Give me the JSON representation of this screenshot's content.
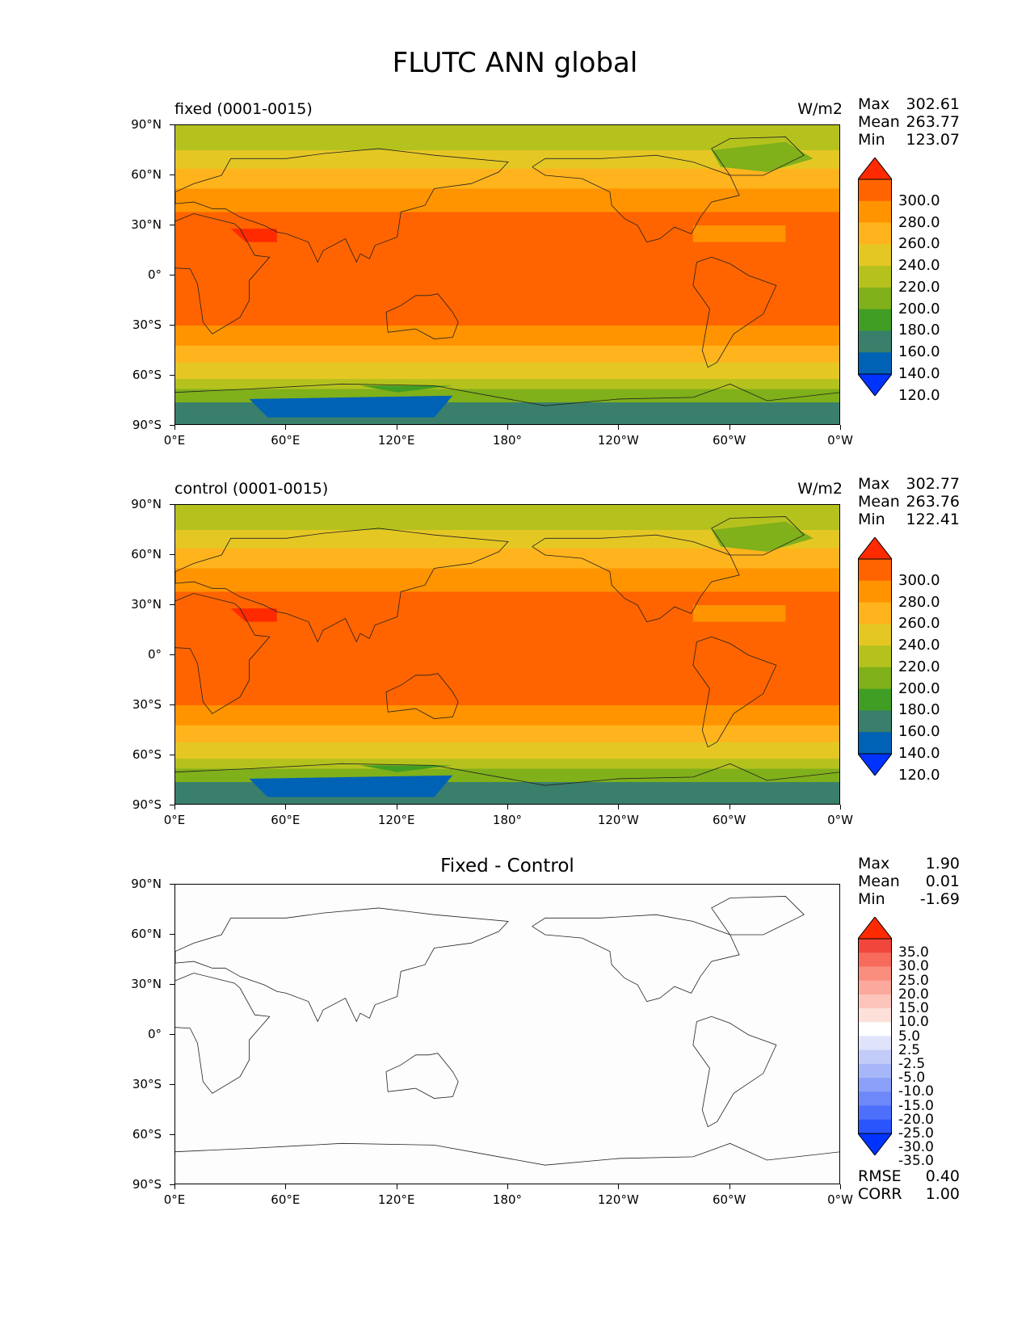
{
  "title": "FLUTC ANN global",
  "axes": {
    "y_labels": [
      "90°N",
      "60°N",
      "30°N",
      "0°",
      "30°S",
      "60°S",
      "90°S"
    ],
    "x_labels": [
      "0°E",
      "60°E",
      "120°E",
      "180°",
      "120°W",
      "60°W",
      "0°W"
    ]
  },
  "panels": [
    {
      "left_title": "fixed (0001-0015)",
      "right_title": "W/m2",
      "stats": [
        [
          "Max",
          "302.61"
        ],
        [
          "Mean",
          "263.77"
        ],
        [
          "Min",
          "123.07"
        ]
      ],
      "colorbar_labels": [
        "300.0",
        "280.0",
        "260.0",
        "240.0",
        "220.0",
        "200.0",
        "180.0",
        "160.0",
        "140.0",
        "120.0"
      ]
    },
    {
      "left_title": "control (0001-0015)",
      "right_title": "W/m2",
      "stats": [
        [
          "Max",
          "302.77"
        ],
        [
          "Mean",
          "263.76"
        ],
        [
          "Min",
          "122.41"
        ]
      ],
      "colorbar_labels": [
        "300.0",
        "280.0",
        "260.0",
        "240.0",
        "220.0",
        "200.0",
        "180.0",
        "160.0",
        "140.0",
        "120.0"
      ]
    },
    {
      "center_title": "Fixed - Control",
      "stats": [
        [
          "Max",
          "1.90"
        ],
        [
          "Mean",
          "0.01"
        ],
        [
          "Min",
          "-1.69"
        ]
      ],
      "colorbar_labels": [
        "35.0",
        "30.0",
        "25.0",
        "20.0",
        "15.0",
        "10.0",
        "5.0",
        "2.5",
        "-2.5",
        "-5.0",
        "-10.0",
        "-15.0",
        "-20.0",
        "-25.0",
        "-30.0",
        "-35.0"
      ],
      "footer_stats": [
        [
          "RMSE",
          "0.40"
        ],
        [
          "CORR",
          "1.00"
        ]
      ]
    }
  ],
  "colors": {
    "abs_levels": [
      "#ff2a00",
      "#ff6400",
      "#ff9400",
      "#ffb31c",
      "#e5c724",
      "#b5c21e",
      "#80b01a",
      "#419e24",
      "#3a7f6b",
      "#0062b5",
      "#0033ff"
    ],
    "diff_levels": [
      "#ff2a00",
      "#f1463c",
      "#f66b5c",
      "#f98d7e",
      "#fba99c",
      "#fcc4ba",
      "#fde0da",
      "#ffffff",
      "#dfe4fb",
      "#c3ccf8",
      "#a6b6f8",
      "#8ba0f8",
      "#6d88f9",
      "#4d6ffb",
      "#2b55fc",
      "#0033ff"
    ]
  }
}
